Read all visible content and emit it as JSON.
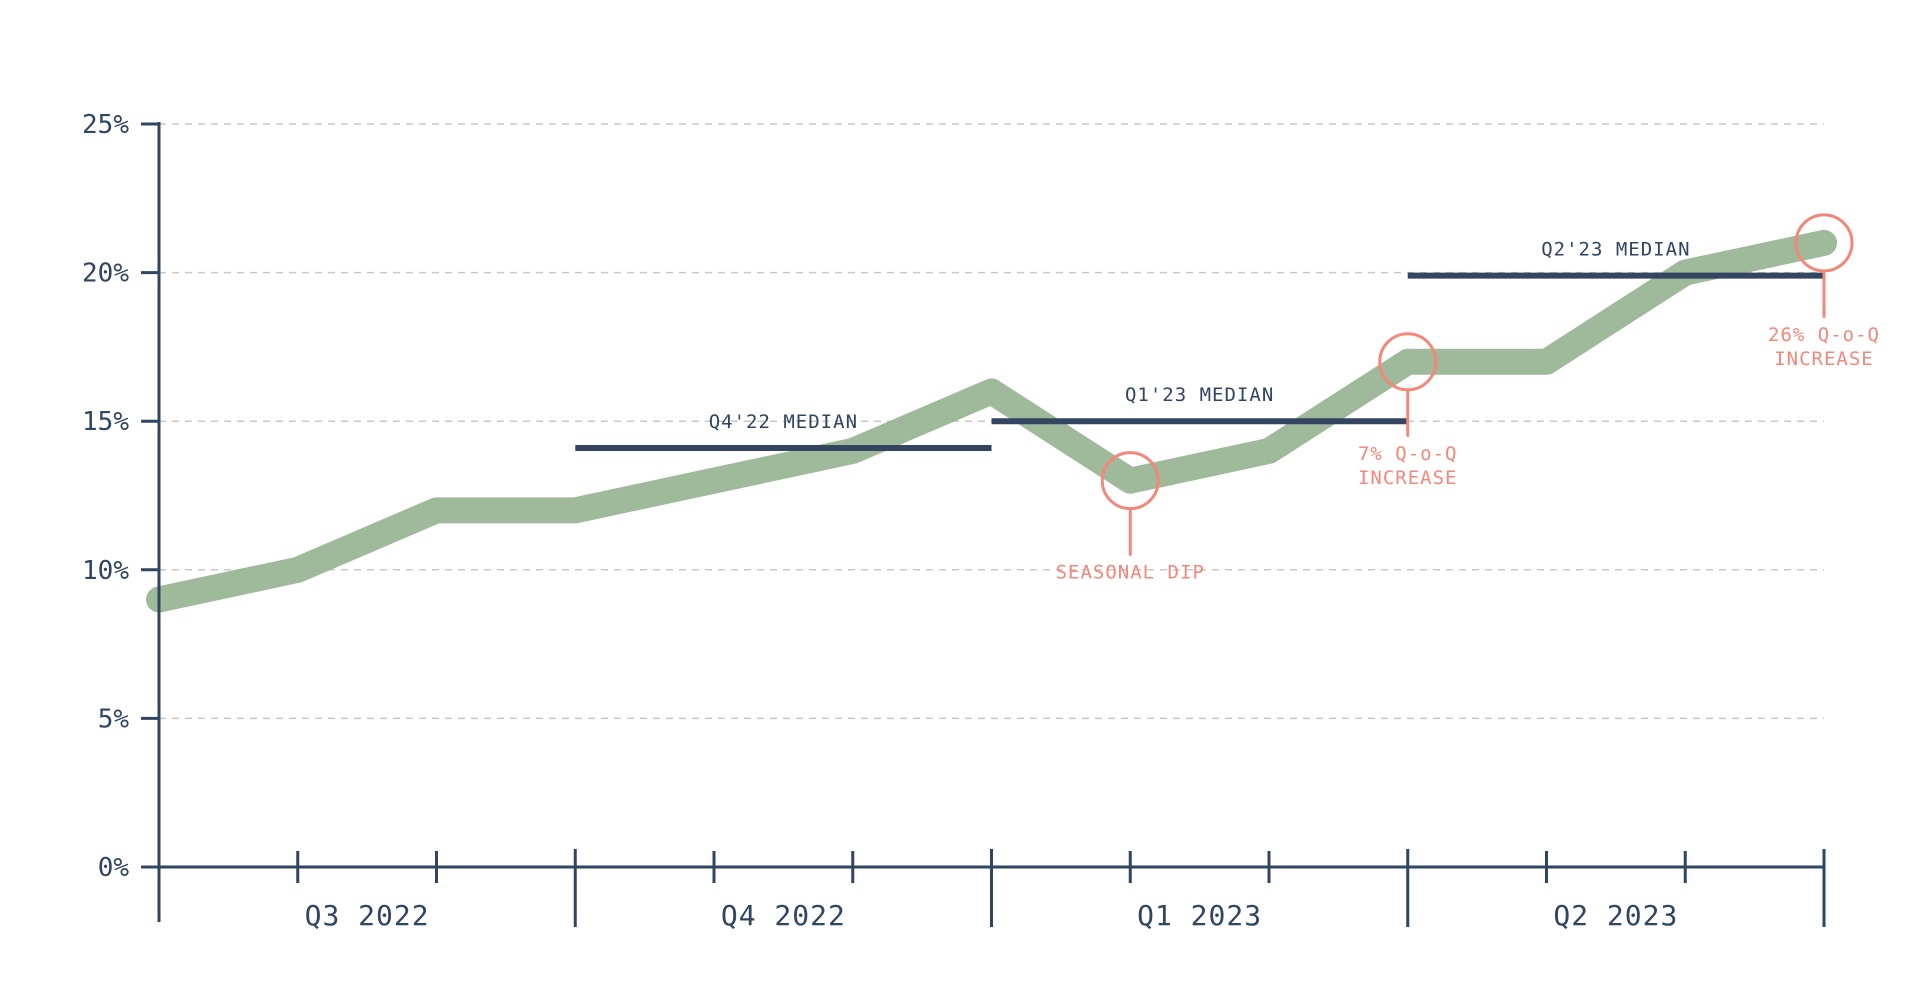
{
  "chart_data": {
    "type": "line",
    "title": "",
    "xlabel": "",
    "ylabel": "",
    "ylim": [
      0,
      25
    ],
    "y_ticks": [
      "0%",
      "5%",
      "10%",
      "15%",
      "20%",
      "25%"
    ],
    "grid": "horizontal-dashed",
    "colors": {
      "series": "#9ab596",
      "axis": "#2f4561",
      "median": "#334560",
      "annotation": "#f2877a",
      "grid": "#c8c8c8"
    },
    "quarters": [
      {
        "label": "Q3 2022"
      },
      {
        "label": "Q4 2022"
      },
      {
        "label": "Q1 2023"
      },
      {
        "label": "Q2 2023"
      }
    ],
    "series": [
      {
        "x": [
          0,
          1,
          2,
          3,
          4,
          5,
          6,
          7,
          8,
          9,
          10,
          11,
          12
        ],
        "values": [
          9,
          10,
          12,
          12,
          13,
          14,
          16,
          13,
          14,
          17,
          17,
          20,
          21
        ]
      }
    ],
    "medians": [
      {
        "label": "Q4'22 MEDIAN",
        "value": 14.1,
        "quarter": 1
      },
      {
        "label": "Q1'23 MEDIAN",
        "value": 15.0,
        "quarter": 2
      },
      {
        "label": "Q2'23 MEDIAN",
        "value": 19.9,
        "quarter": 3
      }
    ],
    "annotations": [
      {
        "point": 7,
        "lines": [
          "SEASONAL DIP"
        ],
        "position": "below"
      },
      {
        "point": 9,
        "lines": [
          "7% Q-o-Q",
          "INCREASE"
        ],
        "position": "below"
      },
      {
        "point": 12,
        "lines": [
          "26% Q-o-Q",
          "INCREASE"
        ],
        "position": "below"
      }
    ]
  }
}
